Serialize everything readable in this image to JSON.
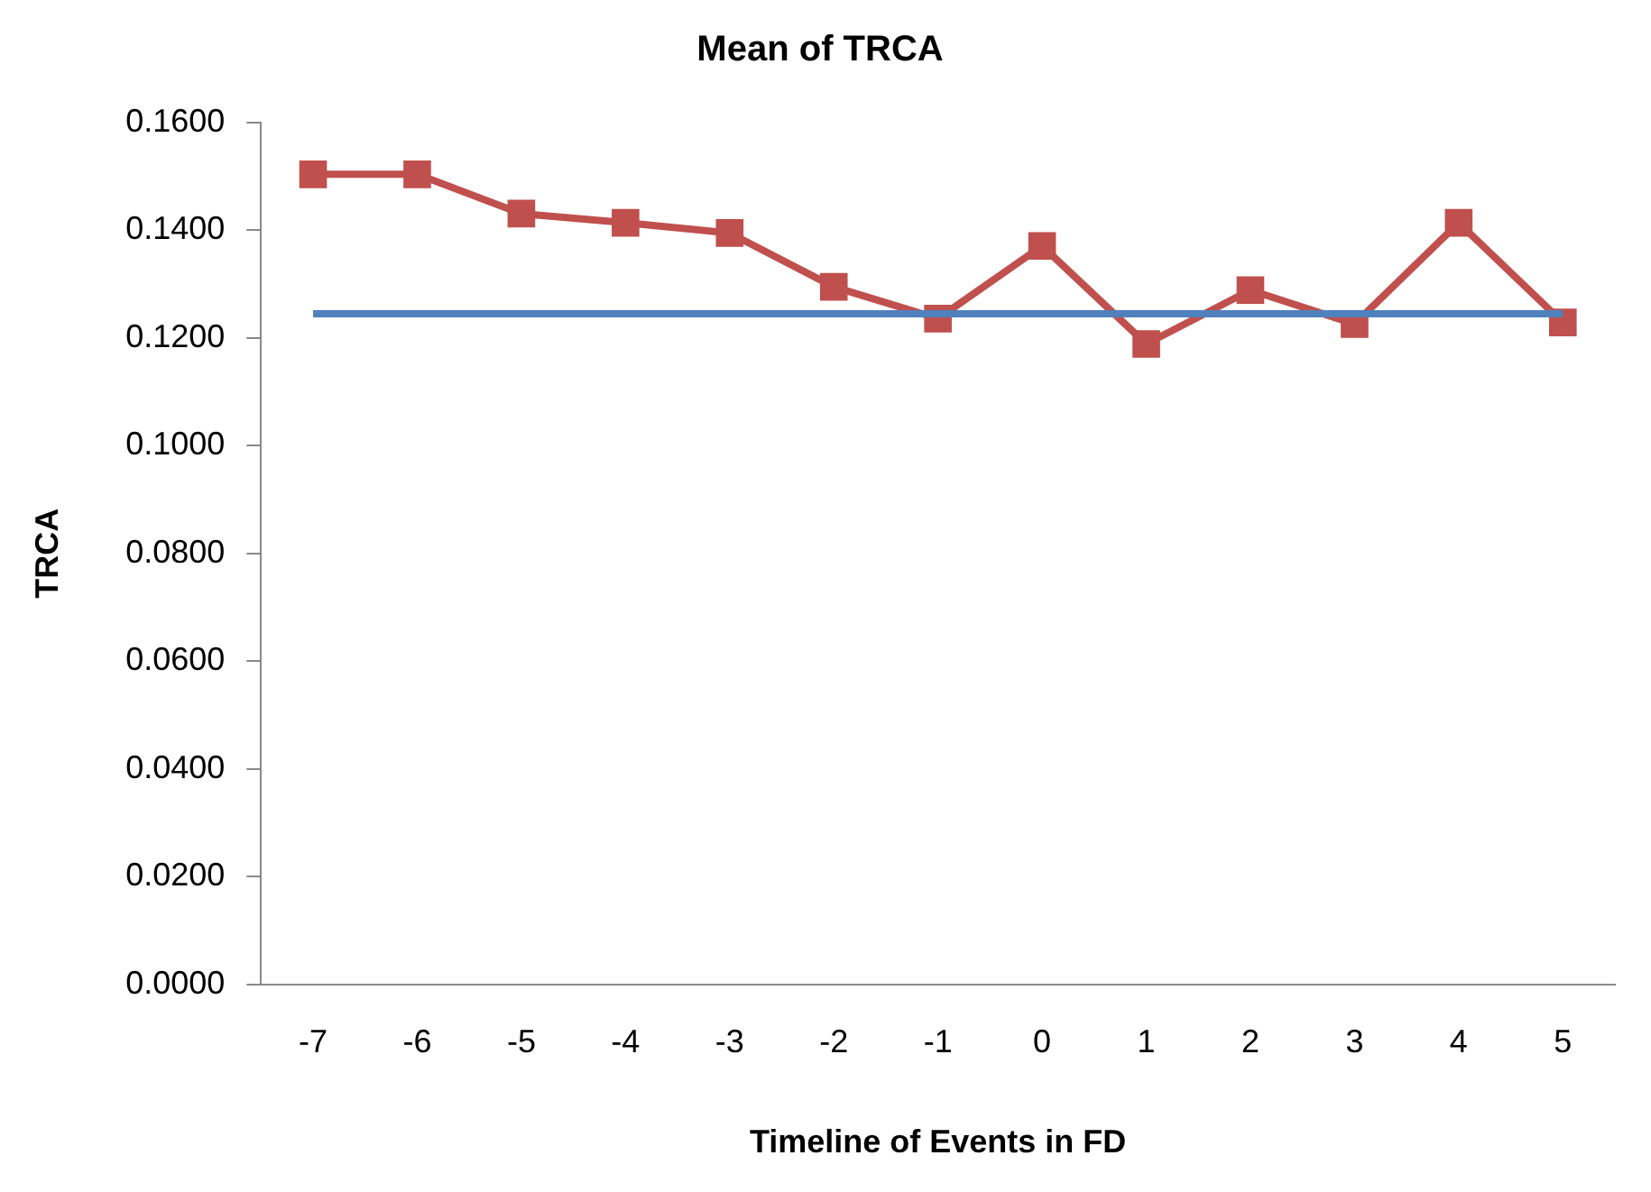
{
  "chart_data": {
    "type": "line",
    "title": "Mean of TRCA",
    "xlabel": "Timeline of Events in FD",
    "ylabel": "TRCA",
    "categories": [
      "-7",
      "-6",
      "-5",
      "-4",
      "-3",
      "-2",
      "-1",
      "0",
      "1",
      "2",
      "3",
      "4",
      "5"
    ],
    "series": [
      {
        "color": "#4f81bd",
        "marker": "none",
        "values": [
          0.1245,
          0.1245,
          0.1245,
          0.1245,
          0.1245,
          0.1245,
          0.1245,
          0.1245,
          0.1245,
          0.1245,
          0.1245,
          0.1245,
          0.1245
        ]
      },
      {
        "color": "#c0504d",
        "marker": "square",
        "values": [
          0.1504,
          0.1504,
          0.1431,
          0.1414,
          0.1395,
          0.1295,
          0.1236,
          0.1371,
          0.1189,
          0.1289,
          0.1226,
          0.1414,
          0.1229
        ]
      }
    ],
    "ylim": [
      0,
      0.16
    ],
    "yticks": [
      {
        "value": 0,
        "label": "0.0000"
      },
      {
        "value": 0.02,
        "label": "0.0200"
      },
      {
        "value": 0.04,
        "label": "0.0400"
      },
      {
        "value": 0.06,
        "label": "0.0600"
      },
      {
        "value": 0.08,
        "label": "0.0800"
      },
      {
        "value": 0.1,
        "label": "0.1000"
      },
      {
        "value": 0.12,
        "label": "0.1200"
      },
      {
        "value": 0.14,
        "label": "0.1400"
      },
      {
        "value": 0.16,
        "label": "0.1600"
      }
    ],
    "grid": false,
    "legend": false
  }
}
